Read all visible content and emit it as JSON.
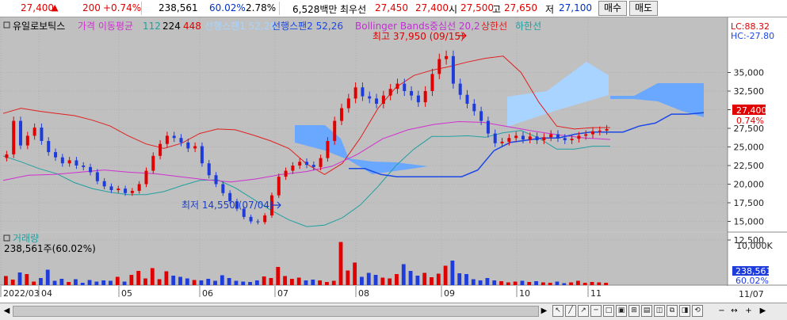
{
  "quote": {
    "price": "27,400",
    "up_arrow": "▲",
    "change": "200",
    "change_pct": "+0.74%",
    "volume": "238,561",
    "volume_ratio": "60.02%",
    "turnover": "2.78%",
    "amount": "6,528백만",
    "best_ask_label": "최우선",
    "best_ask": "27,450",
    "best_bid": "27,400",
    "open_label": "시",
    "open": "27,500",
    "high_label": "고",
    "high": "27,650",
    "low_label": "저",
    "low": "27,100",
    "buy_button": "매수",
    "sell_button": "매도"
  },
  "legend": {
    "stock_name": "유일로보틱스",
    "ma_label": "가격 이동평균",
    "ma1": "112",
    "ma2": "224",
    "ma3": "448",
    "span1": "선행스팬1 52,26",
    "span2": "선행스팬2 52,26",
    "bollinger": "Bollinger Bands중심선 20,2",
    "upper": "상한선",
    "lower": "하한선",
    "lc": "LC:88.32",
    "hc": "HC:-27.80"
  },
  "annotations": {
    "high": "최고 37,950 (09/15)",
    "low": "최저 14,550 (07/04)"
  },
  "price_axis": {
    "ticks": [
      "35,000",
      "32,500",
      "30,000",
      "27,500",
      "25,000",
      "22,500",
      "20,000",
      "17,500",
      "15,000",
      "12,500"
    ],
    "current_price": "27,400",
    "current_pct": "0.74%"
  },
  "volume_panel": {
    "title": "거래량",
    "value": "238,561주(60.02%)",
    "tick": "10,000K",
    "current": "238,561",
    "current_pct": "60.02%"
  },
  "date_axis": {
    "labels": [
      "2022/03",
      "04",
      "05",
      "06",
      "07",
      "08",
      "09",
      "10",
      "11"
    ],
    "right_label": "11/07"
  },
  "colors": {
    "up": "#e00000",
    "down": "#1e3cdc",
    "ma": "#d030d0",
    "bb_upper": "#e02020",
    "bb_lower": "#20a0a0",
    "cloud_bull": "#6aa8ff",
    "cloud_bear": "#a8d4ff",
    "span2": "#1a48e6"
  },
  "chart_data": {
    "type": "candlestick",
    "x": [
      "2022/03",
      "04",
      "05",
      "06",
      "07",
      "08",
      "09",
      "10",
      "11"
    ],
    "y_range": [
      12500,
      37950
    ],
    "closes": [
      24000,
      28500,
      25200,
      26500,
      27600,
      25800,
      24300,
      23600,
      22800,
      23200,
      22500,
      22300,
      21600,
      20400,
      19700,
      19200,
      19400,
      18800,
      19100,
      20000,
      21800,
      23800,
      25400,
      26500,
      26200,
      25600,
      24800,
      25100,
      22800,
      21200,
      20000,
      18800,
      17700,
      16700,
      15600,
      15000,
      14900,
      15800,
      18500,
      21000,
      21800,
      22500,
      23000,
      22600,
      22300,
      23500,
      25800,
      28500,
      30200,
      31500,
      33000,
      31800,
      31500,
      30800,
      31900,
      32800,
      33500,
      32500,
      31900,
      31000,
      32500,
      34800,
      36800,
      37200,
      33500,
      32000,
      30800,
      29800,
      28500,
      26800,
      25500,
      25700,
      26200,
      26500,
      26000,
      26400,
      25900,
      26300,
      26700,
      26200,
      25900,
      26100,
      26500,
      26700,
      27100,
      27200,
      27400
    ],
    "ma_112": [
      20500,
      21200,
      21300,
      21600,
      21900,
      21600,
      21400,
      21000,
      20600,
      20300,
      20700,
      21300,
      21700,
      22400,
      24000,
      26100,
      27300,
      28000,
      28400,
      28300,
      27700,
      27100,
      26600,
      26200,
      26000
    ],
    "bb_upper": [
      29500,
      30200,
      29800,
      29500,
      29200,
      28600,
      27800,
      26500,
      25400,
      24800,
      25500,
      26800,
      27400,
      27300,
      26600,
      25800,
      24800,
      22700,
      21300,
      22800,
      26200,
      30200,
      33000,
      34600,
      35300,
      35800,
      36400,
      36900,
      37200,
      35000,
      31000,
      27800,
      27400,
      27600,
      27600
    ],
    "bb_lower": [
      23800,
      23000,
      22100,
      21400,
      20200,
      19400,
      18900,
      18600,
      18600,
      19000,
      19800,
      20500,
      20600,
      19500,
      18000,
      16500,
      15200,
      14300,
      14500,
      15500,
      17200,
      19700,
      22500,
      24700,
      26400,
      26400,
      26500,
      26300,
      26900,
      27200,
      26200,
      24700,
      24700,
      25100,
      25100
    ],
    "span2": [
      22100,
      22100,
      21300,
      21000,
      21000,
      21000,
      21000,
      21000,
      21900,
      24500,
      25600,
      25900,
      26200,
      26200,
      26700,
      27000,
      27000,
      27000,
      27800,
      28200,
      29400,
      29400,
      29600
    ],
    "volume_k": [
      2300,
      1400,
      3200,
      2800,
      900,
      1800,
      3900,
      1100,
      1600,
      800,
      1500,
      600,
      1300,
      900,
      1200,
      1100,
      2100,
      900,
      2600,
      3600,
      1700,
      4300,
      1500,
      3500,
      2400,
      2100,
      1700,
      1300,
      1200,
      1600,
      1100,
      2500,
      1800,
      1100,
      900,
      800,
      1200,
      2200,
      1800,
      4600,
      2300,
      1600,
      1900,
      1200,
      1400,
      1200,
      800,
      1100,
      10900,
      3700,
      5700,
      2100,
      3100,
      2600,
      1900,
      1700,
      2800,
      5300,
      3600,
      2400,
      3100,
      2000,
      2900,
      4900,
      6200,
      3000,
      2800,
      1500,
      1200,
      1800,
      1200,
      1000,
      700,
      900,
      1100,
      800,
      1000,
      700,
      600,
      900,
      500,
      700,
      1100,
      600,
      800,
      700,
      600
    ],
    "volume_ylim": [
      0,
      12000
    ],
    "high_point": {
      "value": 37950,
      "date": "09/15"
    },
    "low_point": {
      "value": 14550,
      "date": "07/04"
    }
  }
}
